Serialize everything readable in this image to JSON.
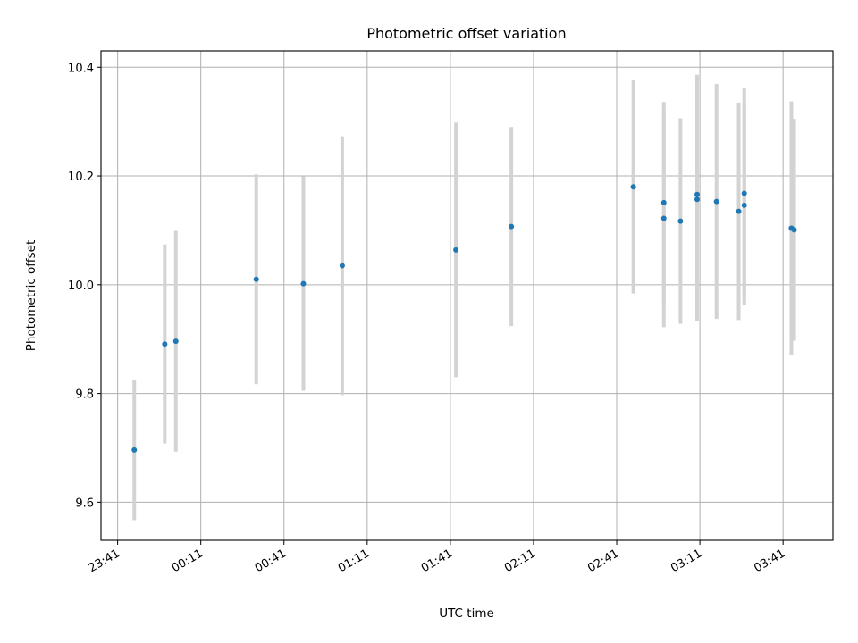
{
  "chart_data": {
    "type": "scatter",
    "title": "Photometric offset variation",
    "xlabel": "UTC time",
    "ylabel": "Photometric offset",
    "x_ticks": [
      "23:41",
      "00:11",
      "00:41",
      "01:11",
      "01:41",
      "02:11",
      "02:41",
      "03:11",
      "03:41"
    ],
    "xlim": [
      "23:35",
      "03:59"
    ],
    "ylim": [
      9.53,
      10.43
    ],
    "y_ticks": [
      9.6,
      9.8,
      10.0,
      10.2,
      10.4
    ],
    "grid": true,
    "error_bar_color": "#d3d3d3",
    "point_color": "#1f77b4",
    "points": [
      {
        "x": "23:47",
        "y": 9.696,
        "err": 0.129
      },
      {
        "x": "23:58",
        "y": 9.891,
        "err": 0.183
      },
      {
        "x": "00:02",
        "y": 9.896,
        "err": 0.203
      },
      {
        "x": "00:31",
        "y": 10.01,
        "err": 0.193
      },
      {
        "x": "00:48",
        "y": 10.002,
        "err": 0.197
      },
      {
        "x": "01:02",
        "y": 10.035,
        "err": 0.238
      },
      {
        "x": "01:43",
        "y": 10.064,
        "err": 0.234
      },
      {
        "x": "02:03",
        "y": 10.107,
        "err": 0.183
      },
      {
        "x": "02:47",
        "y": 10.18,
        "err": 0.196
      },
      {
        "x": "02:58",
        "y": 10.122,
        "err": 0.2
      },
      {
        "x": "02:58",
        "y": 10.151,
        "err": 0.185
      },
      {
        "x": "03:04",
        "y": 10.117,
        "err": 0.189
      },
      {
        "x": "03:10",
        "y": 10.157,
        "err": 0.224
      },
      {
        "x": "03:10",
        "y": 10.166,
        "err": 0.22
      },
      {
        "x": "03:17",
        "y": 10.153,
        "err": 0.216
      },
      {
        "x": "03:25",
        "y": 10.135,
        "err": 0.2
      },
      {
        "x": "03:27",
        "y": 10.146,
        "err": 0.184
      },
      {
        "x": "03:27",
        "y": 10.168,
        "err": 0.194
      },
      {
        "x": "03:44",
        "y": 10.104,
        "err": 0.233
      },
      {
        "x": "03:44",
        "y": 10.104,
        "err": 0.201
      },
      {
        "x": "03:45",
        "y": 10.101,
        "err": 0.204
      }
    ]
  }
}
